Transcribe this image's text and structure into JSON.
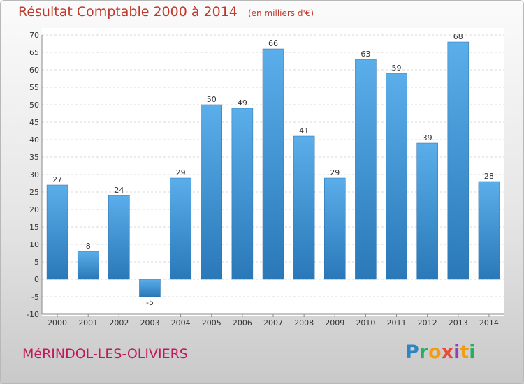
{
  "title": "Résultat Comptable 2000 à 2014",
  "subtitle": "(en milliers d'€)",
  "commune": "MéRINDOL-LES-OLIVIERS",
  "logo": {
    "letters": [
      "P",
      "r",
      "o",
      "x",
      "i",
      "t",
      "i"
    ],
    "colors": [
      "#2e86c1",
      "#27ae60",
      "#f39c12",
      "#e74c3c",
      "#8e44ad",
      "#f39c12",
      "#27ae60"
    ]
  },
  "colors": {
    "bar_top": "#5aaeea",
    "bar_bottom": "#2a78b8",
    "title": "#c0392b",
    "commune": "#c2185b"
  },
  "chart_data": {
    "type": "bar",
    "categories": [
      "2000",
      "2001",
      "2002",
      "2003",
      "2004",
      "2005",
      "2006",
      "2007",
      "2008",
      "2009",
      "2010",
      "2011",
      "2012",
      "2013",
      "2014"
    ],
    "values": [
      27,
      8,
      24,
      -5,
      29,
      50,
      49,
      66,
      41,
      29,
      63,
      59,
      39,
      68,
      28
    ],
    "ylim": [
      -10,
      70
    ],
    "yticks": [
      -10,
      -5,
      0,
      5,
      10,
      15,
      20,
      25,
      30,
      35,
      40,
      45,
      50,
      55,
      60,
      65,
      70
    ],
    "grid": true,
    "xlabel": "",
    "ylabel": ""
  }
}
